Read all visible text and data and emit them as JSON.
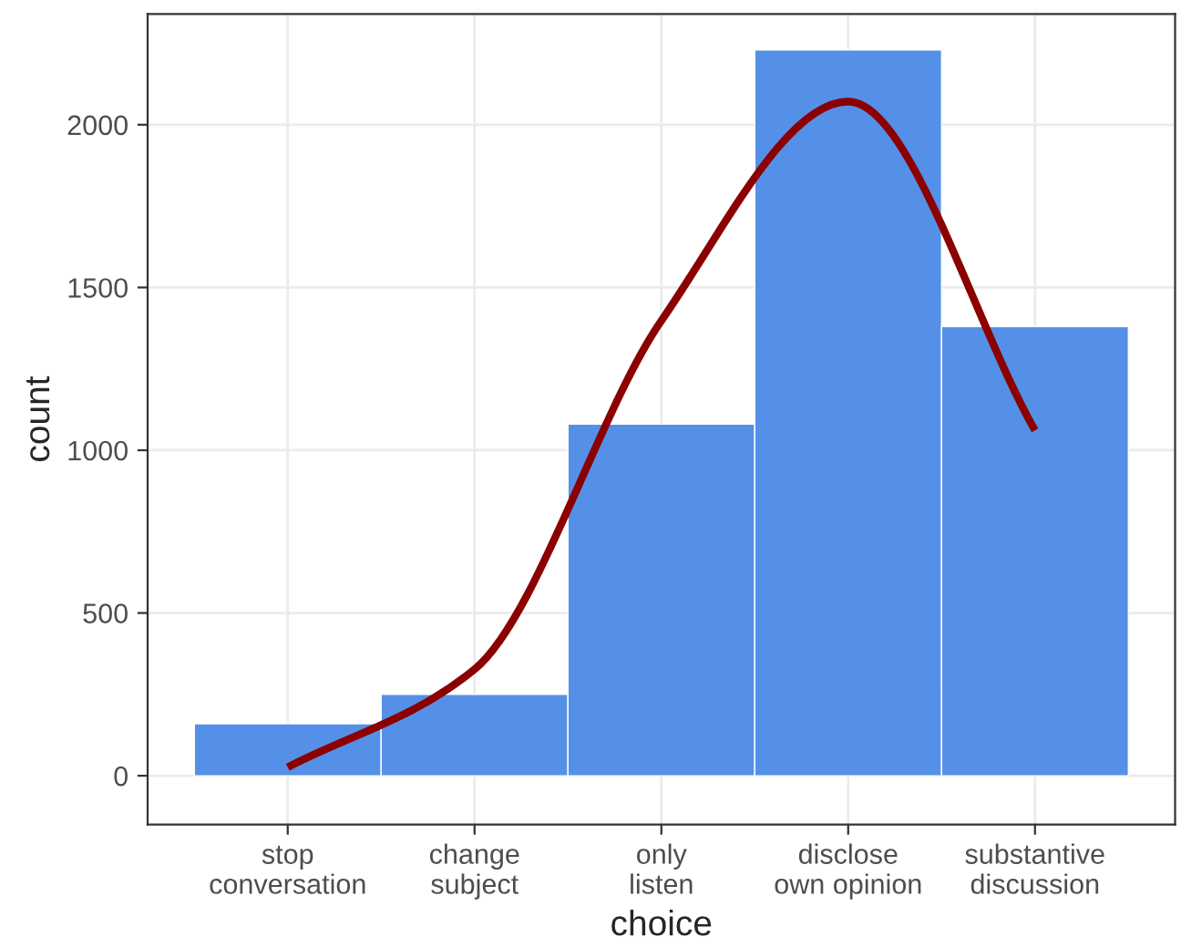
{
  "chart_data": {
    "type": "bar",
    "xlabel": "choice",
    "ylabel": "count",
    "categories": [
      "stop\nconversation",
      "change\nsubject",
      "only\nlisten",
      "disclose\nown opinion",
      "substantive\ndiscussion"
    ],
    "series": [
      {
        "color": "#5590e8",
        "values": [
          160,
          250,
          1080,
          2230,
          1380
        ]
      },
      {
        "type": "line",
        "color": "#8b0000",
        "values": [
          26,
          327,
          1398,
          2071,
          1061
        ]
      }
    ],
    "ylim": [
      -150,
      2340
    ],
    "yticks": [
      0,
      500,
      1000,
      1500,
      2000
    ],
    "grid": true,
    "legend": false
  }
}
